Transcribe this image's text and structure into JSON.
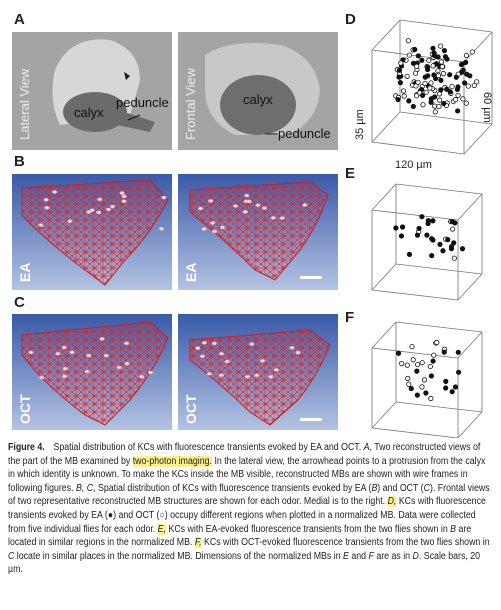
{
  "panel_labels": [
    "A",
    "B",
    "C",
    "D",
    "E",
    "F"
  ],
  "panel_a": {
    "lateral": {
      "title": "Lateral View",
      "calyx": "calyx",
      "peduncle": "peduncle"
    },
    "frontal": {
      "title": "Frontal View",
      "calyx": "calyx",
      "peduncle": "peduncle"
    }
  },
  "panel_b": {
    "labels": [
      "EA",
      "EA"
    ]
  },
  "panel_c": {
    "labels": [
      "OCT",
      "OCT"
    ]
  },
  "panel_d": {
    "z_dim": "35 µm",
    "x_dim": "120 µm",
    "y_dim": "60 µm"
  },
  "caption": {
    "segments": [
      {
        "text": "Figure 4.",
        "style": "bold"
      },
      {
        "text": " Spatial distribution of KCs with fluorescence transients evoked by EA and OCT. ",
        "style": "plain"
      },
      {
        "text": "A",
        "style": "italic"
      },
      {
        "text": ", Two reconstructed views of the part of the MB examined by ",
        "style": "plain"
      },
      {
        "text": "two-photon imaging.",
        "style": "highlight"
      },
      {
        "text": " In the lateral view, the arrowhead points to a protrusion from the calyx in which identity is unknown. To make the KCs inside the MB visible, reconstructed MBs are shown with wire frames in following figures. ",
        "style": "plain"
      },
      {
        "text": "B, C",
        "style": "italic"
      },
      {
        "text": ", Spatial distribution of KCs with fluorescence transients evoked by EA (",
        "style": "plain"
      },
      {
        "text": "B",
        "style": "italic"
      },
      {
        "text": ") and OCT (",
        "style": "plain"
      },
      {
        "text": "C",
        "style": "italic"
      },
      {
        "text": "). Frontal views of two representative reconstructed MB structures are shown for each odor. Medial is to the right. ",
        "style": "plain"
      },
      {
        "text": "D,",
        "style": "highlight-italic"
      },
      {
        "text": " KCs with fluorescence transients evoked by EA (●) and OCT (○) occupy different regions when plotted in a normalized MB. Data were collected from five individual flies for each odor. ",
        "style": "plain"
      },
      {
        "text": "E,",
        "style": "highlight-italic"
      },
      {
        "text": " KCs with EA-evoked fluorescence transients from the two flies shown in ",
        "style": "plain"
      },
      {
        "text": "B",
        "style": "italic"
      },
      {
        "text": " are located in similar regions in the normalized MB. ",
        "style": "plain"
      },
      {
        "text": "F,",
        "style": "highlight-italic"
      },
      {
        "text": " KCs with OCT-evoked fluorescence transients from the two flies shown in ",
        "style": "plain"
      },
      {
        "text": "C",
        "style": "italic"
      },
      {
        "text": " locate in similar places in the normalized MB. Dimensions of the normalized MBs in ",
        "style": "plain"
      },
      {
        "text": "E",
        "style": "italic"
      },
      {
        "text": " and ",
        "style": "plain"
      },
      {
        "text": "F",
        "style": "italic"
      },
      {
        "text": " are as in ",
        "style": "plain"
      },
      {
        "text": "D",
        "style": "italic"
      },
      {
        "text": ". Scale bars, 20 µm.",
        "style": "plain"
      }
    ]
  }
}
